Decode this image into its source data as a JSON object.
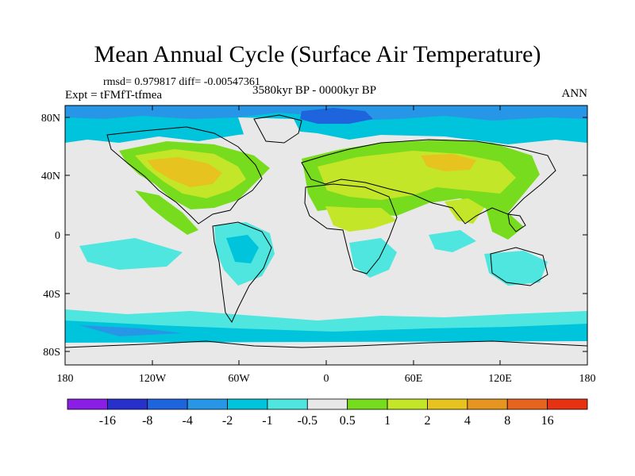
{
  "title": "Mean Annual Cycle (Surface Air Temperature)",
  "stats_line": "rmsd= 0.979817 diff= -0.00547361",
  "experiment_label": "Expt = tFMfT-tfmea",
  "period_label": "3580kyr BP - 0000kyr BP",
  "season_label": "ANN",
  "map": {
    "lat_ticks": [
      "80N",
      "40N",
      "0",
      "40S",
      "80S"
    ],
    "lat_values": [
      80,
      40,
      0,
      -40,
      -80
    ],
    "lon_ticks": [
      "180",
      "120W",
      "60W",
      "0",
      "60E",
      "120E",
      "180"
    ],
    "lon_values": [
      -180,
      -120,
      -60,
      0,
      60,
      120,
      180
    ],
    "lat_range": [
      -90,
      90
    ],
    "lon_range": [
      -180,
      180
    ]
  },
  "colorbar": {
    "labels": [
      "-16",
      "-8",
      "-4",
      "-2",
      "-1",
      "-0.5",
      "0.5",
      "1",
      "2",
      "4",
      "8",
      "16"
    ],
    "colors": [
      "#8a1ee6",
      "#2830cc",
      "#1e64dc",
      "#2896e6",
      "#00c4dc",
      "#4ee6de",
      "#e8e8e8",
      "#78dc1e",
      "#c4e628",
      "#e6c31e",
      "#e6961e",
      "#e6641e",
      "#e63212"
    ]
  },
  "palette": {
    "ocean_neutral": "#e8e8e8",
    "cool_light": "#4ee6de",
    "cool_mid": "#00c4dc",
    "cool_dark": "#2896e6",
    "cool_deep": "#1e64dc",
    "warm_green": "#78dc1e",
    "warm_yellow": "#c4e628",
    "warm_orange": "#e6c31e",
    "coast": "#000000"
  }
}
